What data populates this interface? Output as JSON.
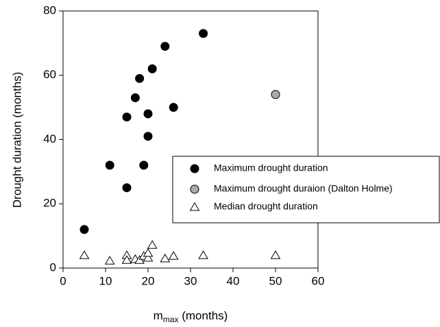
{
  "chart_data": {
    "type": "scatter",
    "y_label": "Drought duration (months)",
    "x_label": {
      "main": "m",
      "sub": "max",
      "rest": " (months)"
    },
    "xlim": [
      0,
      60
    ],
    "xticks": [
      0,
      10,
      20,
      30,
      40,
      50,
      60
    ],
    "ylim": [
      0,
      80
    ],
    "yticks": [
      0,
      20,
      40,
      60,
      80
    ],
    "legend": "right",
    "series": [
      {
        "name": "Maximum drought duration",
        "color": "#000000",
        "marker": "circle",
        "x": [
          5,
          11,
          15,
          15,
          17,
          18,
          19,
          20,
          20,
          21,
          24,
          26,
          33
        ],
        "values": [
          12,
          32,
          25,
          47,
          53,
          59,
          32,
          48,
          41,
          62,
          69,
          50,
          73
        ]
      },
      {
        "name": "Maximum drought duraion (Dalton Holme)",
        "color": "#aaaaaa",
        "marker": "circle",
        "x": [
          50
        ],
        "values": [
          54
        ]
      },
      {
        "name": "Median drought duration",
        "color": "#ffffff",
        "marker": "triangle",
        "x": [
          5,
          11,
          15,
          15,
          17,
          18,
          19,
          20,
          20,
          21,
          24,
          26,
          33,
          50
        ],
        "values": [
          4,
          2.3,
          4,
          2.5,
          2.8,
          2.5,
          3.8,
          3.2,
          4.7,
          7.2,
          3,
          3.8,
          4,
          4
        ]
      }
    ]
  }
}
